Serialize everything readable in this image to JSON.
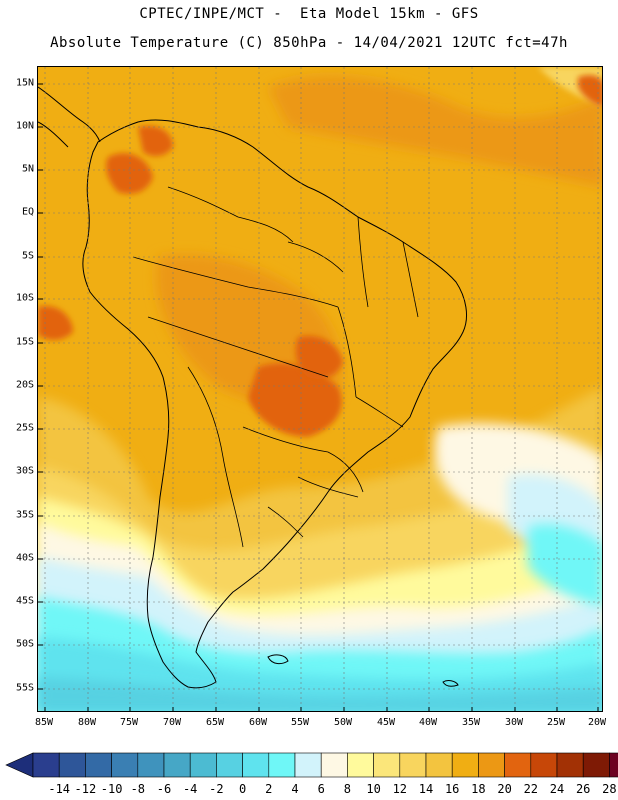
{
  "header": {
    "line1": "CPTEC/INPE/MCT -  Eta Model 15km - GFS",
    "line2": "Absolute Temperature (C) 850hPa - 14/04/2021 12UTC fct=47h"
  },
  "axes": {
    "lat_labels": [
      "15N",
      "10N",
      "5N",
      "EQ",
      "5S",
      "10S",
      "15S",
      "20S",
      "25S",
      "30S",
      "35S",
      "40S",
      "45S",
      "50S",
      "55S"
    ],
    "lon_labels": [
      "85W",
      "80W",
      "75W",
      "70W",
      "65W",
      "60W",
      "55W",
      "50W",
      "45W",
      "40W",
      "35W",
      "30W",
      "25W",
      "20W"
    ]
  },
  "colorbar": {
    "ticks": [
      "-14",
      "-12",
      "-10",
      "-8",
      "-6",
      "-4",
      "-2",
      "0",
      "2",
      "4",
      "6",
      "8",
      "10",
      "12",
      "14",
      "16",
      "18",
      "20",
      "22",
      "24",
      "26",
      "28"
    ],
    "colors": [
      "#2a3e8e",
      "#2e5699",
      "#336aa6",
      "#3a7fb3",
      "#3f93bd",
      "#46a7c6",
      "#4cbbd2",
      "#57d1e2",
      "#5fe3ee",
      "#6ff7f7",
      "#d2f3fb",
      "#fef8e4",
      "#fffa9c",
      "#fbe67a",
      "#f8d55e",
      "#f3c43f",
      "#f0ae13",
      "#ec9814",
      "#e2640f",
      "#c74708",
      "#a23105",
      "#7e1a05",
      "#6c0020"
    ],
    "low_arrow_color": "#1d2e7a",
    "high_arrow_color": "#6c0020"
  },
  "map_colors": {
    "warm": "#f0ae13",
    "warmer": "#ec9814",
    "hot": "#e2640f",
    "mild": "#f3c43f",
    "yellow": "#f8d55e",
    "cream": "#fef8e4",
    "pale_yellow": "#fffa9c",
    "light_cyan": "#d2f3fb",
    "cyan": "#6ff7f7",
    "aqua": "#5fe3ee",
    "teal": "#57d1e2",
    "blue_teal": "#4cbbd2"
  }
}
